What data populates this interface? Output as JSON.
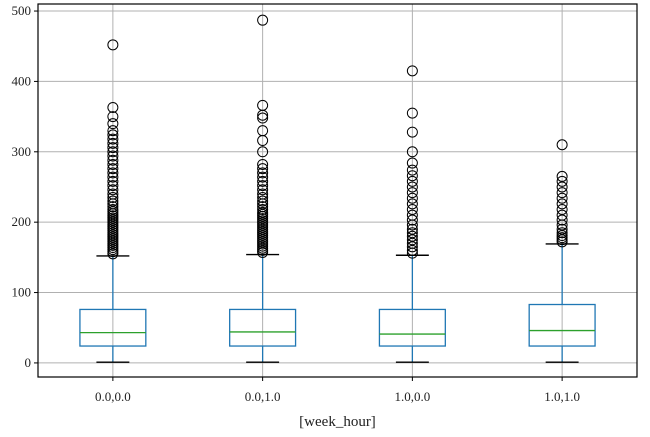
{
  "chart_data": {
    "type": "box",
    "title": "",
    "xlabel": "[week_hour]",
    "ylabel": "",
    "ylim": [
      -20,
      510
    ],
    "yticks": [
      0,
      100,
      200,
      300,
      400,
      500
    ],
    "grid": true,
    "colors": {
      "box": "#1f77b4",
      "median": "#2ca02c",
      "whisker": "#1f77b4",
      "cap": "#000000",
      "flier": "#000000",
      "grid": "#b0b0b0",
      "frame": "#000000"
    },
    "groups": [
      {
        "label": "0.0,0.0",
        "min": 1,
        "q1": 24,
        "median": 43,
        "q3": 76,
        "max": 152,
        "outliers": [
          155,
          158,
          161,
          164,
          167,
          170,
          173,
          176,
          179,
          182,
          185,
          188,
          191,
          194,
          197,
          200,
          203,
          206,
          209,
          212,
          215,
          218,
          222,
          226,
          230,
          235,
          240,
          246,
          252,
          258,
          264,
          270,
          276,
          282,
          288,
          294,
          300,
          306,
          312,
          318,
          324,
          330,
          340,
          350,
          363,
          452
        ]
      },
      {
        "label": "0.0,1.0",
        "min": 1,
        "q1": 24,
        "median": 44,
        "q3": 76,
        "max": 154,
        "outliers": [
          157,
          160,
          163,
          166,
          169,
          172,
          175,
          178,
          181,
          184,
          187,
          190,
          193,
          196,
          199,
          202,
          205,
          208,
          211,
          214,
          218,
          222,
          226,
          230,
          235,
          240,
          246,
          252,
          258,
          264,
          270,
          276,
          282,
          300,
          316,
          330,
          348,
          352,
          366,
          487
        ]
      },
      {
        "label": "1.0,0.0",
        "min": 1,
        "q1": 24,
        "median": 41,
        "q3": 76,
        "max": 153,
        "outliers": [
          156,
          160,
          165,
          170,
          175,
          180,
          185,
          190,
          196,
          203,
          210,
          218,
          226,
          234,
          242,
          250,
          258,
          266,
          274,
          284,
          300,
          328,
          355,
          415
        ]
      },
      {
        "label": "1.0,1.0",
        "min": 1,
        "q1": 24,
        "median": 46,
        "q3": 83,
        "max": 169,
        "outliers": [
          172,
          175,
          178,
          181,
          185,
          190,
          196,
          203,
          210,
          218,
          226,
          234,
          242,
          250,
          258,
          265,
          310
        ]
      }
    ]
  }
}
